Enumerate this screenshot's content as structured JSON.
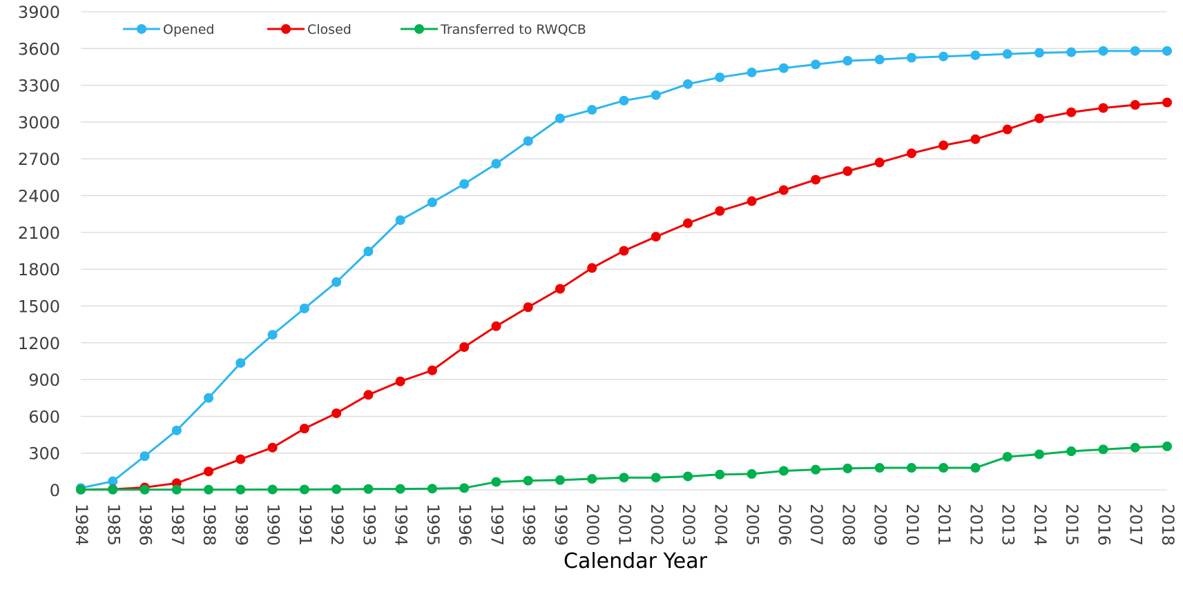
{
  "chart_data": {
    "type": "line",
    "xlabel": "Calendar Year",
    "ylabel": "",
    "ylim": [
      0,
      3900
    ],
    "yticks": [
      0,
      300,
      600,
      900,
      1200,
      1500,
      1800,
      2100,
      2400,
      2700,
      3000,
      3300,
      3600,
      3900
    ],
    "grid": true,
    "legend_position": "top-left",
    "categories": [
      "1984",
      "1985",
      "1986",
      "1987",
      "1988",
      "1989",
      "1990",
      "1991",
      "1992",
      "1993",
      "1994",
      "1995",
      "1996",
      "1997",
      "1998",
      "1999",
      "2000",
      "2001",
      "2002",
      "2003",
      "2004",
      "2005",
      "2006",
      "2007",
      "2008",
      "2009",
      "2010",
      "2011",
      "2012",
      "2013",
      "2014",
      "2015",
      "2016",
      "2017",
      "2018"
    ],
    "series": [
      {
        "name": "Opened",
        "color": "#2DB6F0",
        "values": [
          15,
          70,
          275,
          485,
          750,
          1035,
          1265,
          1480,
          1695,
          1945,
          2200,
          2345,
          2495,
          2660,
          2845,
          3030,
          3100,
          3175,
          3220,
          3310,
          3365,
          3405,
          3440,
          3470,
          3500,
          3510,
          3525,
          3535,
          3545,
          3555,
          3565,
          3570,
          3580,
          3580,
          3580
        ]
      },
      {
        "name": "Closed",
        "color": "#F00000",
        "values": [
          2,
          5,
          20,
          55,
          150,
          250,
          345,
          500,
          625,
          775,
          885,
          975,
          1165,
          1335,
          1490,
          1640,
          1810,
          1950,
          2065,
          2175,
          2275,
          2355,
          2445,
          2530,
          2600,
          2670,
          2745,
          2810,
          2860,
          2940,
          3030,
          3080,
          3115,
          3140,
          3160
        ]
      },
      {
        "name": "Transferred to RWQCB",
        "color": "#00B050",
        "values": [
          2,
          2,
          2,
          2,
          2,
          2,
          3,
          3,
          5,
          7,
          8,
          10,
          15,
          65,
          75,
          80,
          90,
          100,
          100,
          110,
          125,
          130,
          155,
          165,
          175,
          180,
          180,
          180,
          180,
          270,
          290,
          315,
          330,
          345,
          355
        ]
      }
    ]
  }
}
